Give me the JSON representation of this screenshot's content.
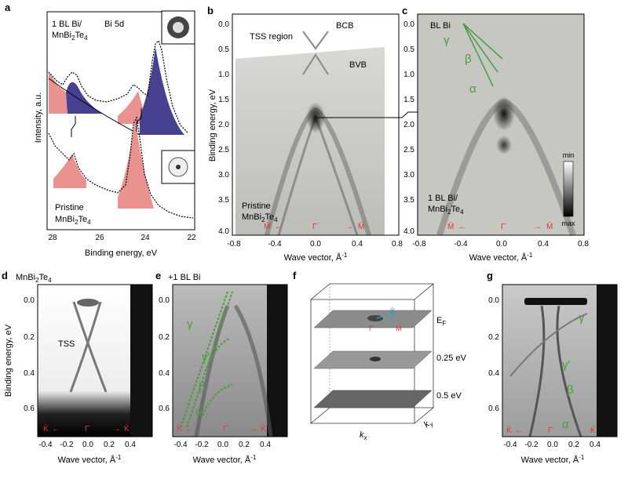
{
  "panels": {
    "a": {
      "label": "a",
      "sample_top": [
        "1 BL Bi/",
        "MnBi",
        "2",
        "Te",
        "4"
      ],
      "core_level": "Bi 5d",
      "sample_bottom": [
        "Pristine",
        "MnBi",
        "2",
        "Te",
        "4"
      ],
      "ylabel": "Intensity, a.u.",
      "xlabel": "Binding energy, eV",
      "xticks": [
        "28",
        "26",
        "24",
        "22"
      ]
    },
    "b": {
      "label": "b",
      "annotations": [
        "TSS region",
        "BCB",
        "BVB"
      ],
      "sample": [
        "Pristine",
        "MnBi",
        "2",
        "Te",
        "4"
      ],
      "ylabel": "Binding energy, eV",
      "xlabel": "Wave vector, Å",
      "xlabel_sup": "-1",
      "yticks": [
        "0.0",
        "0.5",
        "1.0",
        "1.5",
        "2.0",
        "2.5",
        "3.0",
        "3.5",
        "4.0"
      ],
      "xticks": [
        "-0.8",
        "-0.4",
        "0.0",
        "0.4",
        "0.8"
      ],
      "k_labels": [
        "M̄",
        "Γ̄",
        "M̄"
      ]
    },
    "c": {
      "label": "c",
      "annotations": [
        "BL Bi"
      ],
      "bands": [
        "γ",
        "β",
        "α"
      ],
      "sample": [
        "1 BL Bi/",
        "MnBi",
        "2",
        "Te",
        "4"
      ],
      "colorbar": [
        "min",
        "max"
      ],
      "xlabel": "Wave vector, Å",
      "xlabel_sup": "-1",
      "yticks": [
        "0.0",
        "0.5",
        "1.0",
        "1.5",
        "2.0",
        "2.5",
        "3.0",
        "3.5",
        "4.0"
      ],
      "xticks": [
        "-0.8",
        "-0.4",
        "0.0",
        "0.4",
        "0.8"
      ],
      "k_labels": [
        "M̄",
        "Γ̄",
        "M̄"
      ]
    },
    "d": {
      "label": "d",
      "title": [
        "MnBi",
        "2",
        "Te",
        "4"
      ],
      "annotation": "TSS",
      "ylabel": "Binding energy, eV",
      "xlabel": "Wave vector, Å",
      "xlabel_sup": "-1",
      "yticks": [
        "0.0",
        "0.2",
        "0.4",
        "0.6"
      ],
      "xticks": [
        "-0.4",
        "-0.2",
        "0.0",
        "0.2",
        "0.4"
      ],
      "k_labels": [
        "K̄",
        "Γ̄",
        "K̄"
      ]
    },
    "e": {
      "label": "e",
      "title": "+1 BL Bi",
      "bands": [
        "γ",
        "γ′",
        "β",
        "α"
      ],
      "xlabel": "Wave vector, Å",
      "xlabel_sup": "-1",
      "yticks": [
        "0.0",
        "0.2",
        "0.4",
        "0.6"
      ],
      "xticks": [
        "-0.4",
        "-0.2",
        "0.0",
        "0.2",
        "0.4"
      ],
      "k_labels": [
        "K̄",
        "Γ̄",
        "K̄"
      ]
    },
    "f": {
      "label": "f",
      "energies": [
        "E",
        "F",
        "0.25 eV",
        "0.5 eV"
      ],
      "k_labels": [
        "K̄",
        "Γ̄",
        "M̄"
      ],
      "axes": [
        "k",
        "x",
        "k",
        "y"
      ]
    },
    "g": {
      "label": "g",
      "bands": [
        "γ",
        "γ′",
        "β",
        "α"
      ],
      "xlabel": "Wave vector, Å",
      "xlabel_sup": "-1",
      "yticks": [
        "0.0",
        "0.2",
        "0.4",
        "0.6"
      ],
      "xticks": [
        "-0.4",
        "-0.2",
        "0.0",
        "0.2",
        "0.4"
      ],
      "k_labels": [
        "K̄",
        "Γ̄",
        "K̄"
      ]
    }
  }
}
